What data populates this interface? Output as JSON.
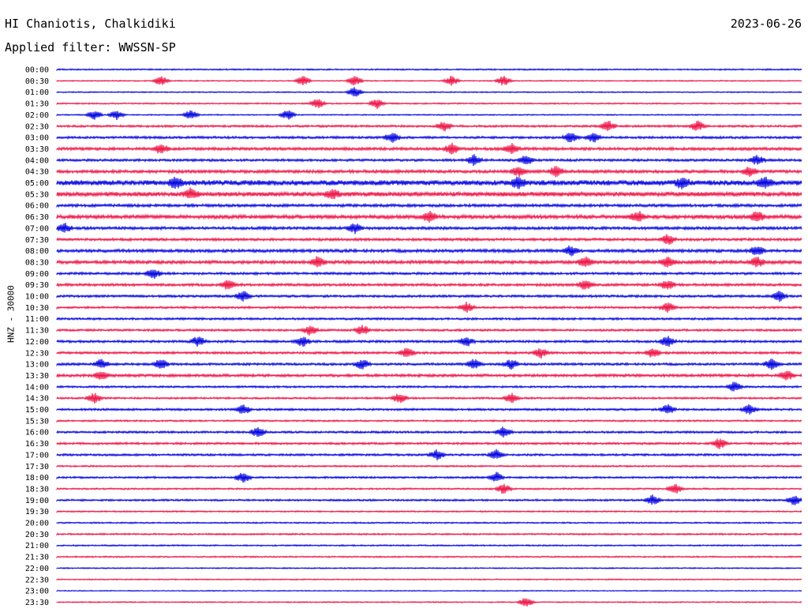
{
  "header": {
    "station": "HI Chaniotis, Chalkidiki",
    "date": "2023-06-26",
    "filter": "Applied filter: WWSSN-SP"
  },
  "colors": {
    "even": "#0000e0",
    "odd": "#ee1144"
  },
  "chart_data": {
    "type": "line",
    "title": "HI Chaniotis, Chalkidiki",
    "ylabel": "HNZ - 30000",
    "rows": [
      "00:00",
      "00:30",
      "01:00",
      "01:30",
      "02:00",
      "02:30",
      "03:00",
      "03:30",
      "04:00",
      "04:30",
      "05:00",
      "05:30",
      "06:00",
      "06:30",
      "07:00",
      "07:30",
      "08:00",
      "08:30",
      "09:00",
      "09:30",
      "10:00",
      "10:30",
      "11:00",
      "11:30",
      "12:00",
      "12:30",
      "13:00",
      "13:30",
      "14:00",
      "14:30",
      "15:00",
      "15:30",
      "16:00",
      "16:30",
      "17:00",
      "17:30",
      "18:00",
      "18:30",
      "19:00",
      "19:30",
      "20:00",
      "20:30",
      "21:00",
      "21:30",
      "22:00",
      "22:30",
      "23:00",
      "23:30"
    ],
    "row_noise": [
      0.6,
      0.5,
      0.5,
      0.6,
      0.5,
      0.9,
      1.0,
      1.2,
      1.0,
      1.3,
      2.2,
      1.9,
      1.2,
      1.6,
      1.2,
      1.1,
      1.3,
      1.4,
      1.0,
      1.1,
      1.0,
      0.9,
      0.9,
      0.9,
      1.0,
      1.0,
      1.0,
      1.2,
      0.8,
      0.8,
      0.9,
      0.7,
      0.9,
      0.9,
      0.9,
      0.7,
      0.8,
      0.7,
      0.8,
      0.6,
      0.6,
      0.7,
      0.6,
      0.6,
      0.5,
      0.5,
      0.4,
      0.5
    ],
    "events": [
      {
        "row": 1,
        "x": [
          0.14,
          0.33,
          0.4,
          0.53,
          0.6
        ]
      },
      {
        "row": 2,
        "x": [
          0.4
        ]
      },
      {
        "row": 3,
        "x": [
          0.35,
          0.43
        ]
      },
      {
        "row": 4,
        "x": [
          0.05,
          0.08,
          0.18,
          0.31
        ]
      },
      {
        "row": 5,
        "x": [
          0.52,
          0.74,
          0.86
        ]
      },
      {
        "row": 6,
        "x": [
          0.45,
          0.69,
          0.72
        ]
      },
      {
        "row": 7,
        "x": [
          0.14,
          0.53,
          0.61
        ]
      },
      {
        "row": 8,
        "x": [
          0.56,
          0.63,
          0.94
        ]
      },
      {
        "row": 9,
        "x": [
          0.62,
          0.67,
          0.93
        ]
      },
      {
        "row": 10,
        "x": [
          0.16,
          0.62,
          0.84,
          0.95
        ]
      },
      {
        "row": 11,
        "x": [
          0.18,
          0.37
        ]
      },
      {
        "row": 13,
        "x": [
          0.5,
          0.78,
          0.94
        ]
      },
      {
        "row": 14,
        "x": [
          0.01,
          0.4
        ]
      },
      {
        "row": 15,
        "x": [
          0.82
        ]
      },
      {
        "row": 16,
        "x": [
          0.69,
          0.94
        ]
      },
      {
        "row": 17,
        "x": [
          0.35,
          0.71,
          0.82,
          0.94
        ]
      },
      {
        "row": 18,
        "x": [
          0.13
        ]
      },
      {
        "row": 19,
        "x": [
          0.23,
          0.71,
          0.82
        ]
      },
      {
        "row": 20,
        "x": [
          0.25,
          0.97
        ]
      },
      {
        "row": 21,
        "x": [
          0.55,
          0.82
        ]
      },
      {
        "row": 23,
        "x": [
          0.34,
          0.41
        ]
      },
      {
        "row": 24,
        "x": [
          0.19,
          0.33,
          0.55,
          0.82
        ]
      },
      {
        "row": 25,
        "x": [
          0.47,
          0.65,
          0.8
        ]
      },
      {
        "row": 26,
        "x": [
          0.06,
          0.14,
          0.41,
          0.56,
          0.61,
          0.96
        ]
      },
      {
        "row": 27,
        "x": [
          0.06,
          0.98
        ]
      },
      {
        "row": 28,
        "x": [
          0.91
        ]
      },
      {
        "row": 29,
        "x": [
          0.05,
          0.46,
          0.61
        ]
      },
      {
        "row": 30,
        "x": [
          0.25,
          0.82,
          0.93
        ]
      },
      {
        "row": 32,
        "x": [
          0.27,
          0.6
        ]
      },
      {
        "row": 33,
        "x": [
          0.89
        ]
      },
      {
        "row": 34,
        "x": [
          0.51,
          0.59
        ]
      },
      {
        "row": 36,
        "x": [
          0.25,
          0.59
        ]
      },
      {
        "row": 37,
        "x": [
          0.6,
          0.83
        ]
      },
      {
        "row": 38,
        "x": [
          0.8,
          0.99
        ]
      },
      {
        "row": 47,
        "x": [
          0.63
        ]
      }
    ]
  }
}
